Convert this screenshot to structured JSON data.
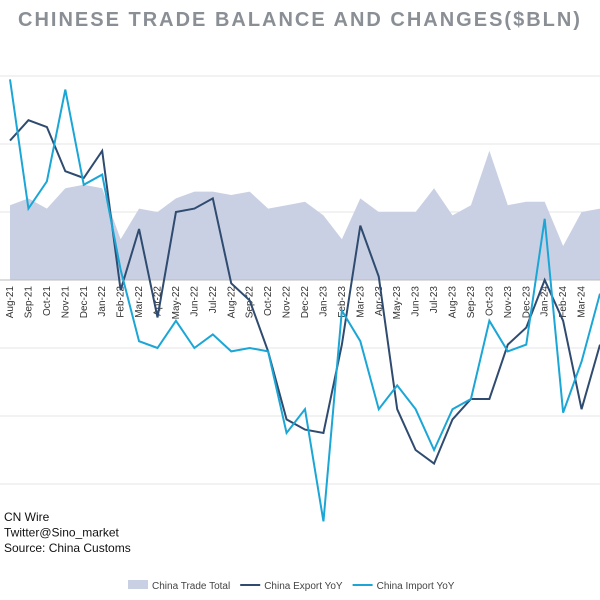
{
  "chart_data": {
    "type": "line",
    "title": "CHINESE TRADE BALANCE AND CHANGES($BLN)",
    "annotations": [
      "CN Wire",
      "Twitter@Sino_market",
      "Source: China Customs"
    ],
    "categories": [
      "Aug-21",
      "Sep-21",
      "Oct-21",
      "Nov-21",
      "Dec-21",
      "Jan-22",
      "Feb-22",
      "Mar-22",
      "Apr-22",
      "May-22",
      "Jun-22",
      "Jul-22",
      "Aug-22",
      "Sep-22",
      "Oct-22",
      "Nov-22",
      "Dec-22",
      "Jan-23",
      "Feb-23",
      "Mar-23",
      "Apr-23",
      "May-23",
      "Jun-23",
      "Jul-23",
      "Aug-23",
      "Sep-23",
      "Oct-23",
      "Nov-23",
      "Dec-23",
      "Jan-24",
      "Feb-24",
      "Mar-24",
      null
    ],
    "series": [
      {
        "name": "China Trade Total",
        "kind": "area",
        "color": "#c9d0e3",
        "values": [
          22,
          24,
          21,
          27,
          28,
          27,
          12,
          21,
          20,
          24,
          26,
          26,
          25,
          26,
          21,
          22,
          23,
          19,
          12,
          24,
          20,
          20,
          20,
          27,
          19,
          22,
          38,
          22,
          23,
          23,
          10,
          20,
          21
        ]
      },
      {
        "name": "China Export YoY",
        "kind": "line",
        "color": "#2f4b70",
        "values": [
          41,
          47,
          45,
          32,
          30,
          38,
          -3,
          15,
          -11,
          20,
          21,
          24,
          -1,
          -6,
          -21,
          -41,
          -44,
          -45,
          -19,
          16,
          1,
          -38,
          -50,
          -54,
          -41,
          -35,
          -35,
          -19,
          -14,
          0,
          -12,
          -38,
          -19
        ]
      },
      {
        "name": "China Import YoY",
        "kind": "line",
        "color": "#1ba6d6",
        "values": [
          59,
          21,
          29,
          56,
          28,
          31,
          3,
          -18,
          -20,
          -12,
          -20,
          -16,
          -21,
          -20,
          -21,
          -45,
          -38,
          -71,
          -9,
          -18,
          -38,
          -31,
          -38,
          -50,
          -38,
          -35,
          -12,
          -21,
          -19,
          18,
          -39,
          -24,
          -4
        ]
      }
    ],
    "ylim": [
      -75,
      70
    ],
    "yticks": [
      -60,
      -40,
      -20,
      0,
      20,
      40,
      60
    ],
    "grid": true
  }
}
